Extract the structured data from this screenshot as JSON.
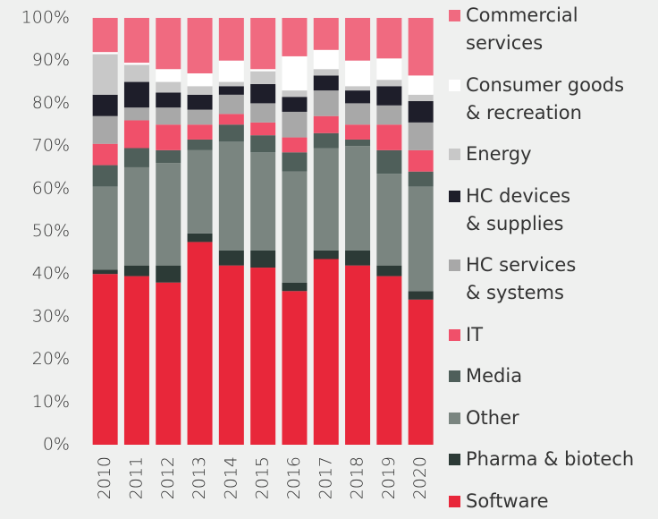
{
  "chart_data": {
    "type": "stacked_bar",
    "categories": [
      "2010",
      "2011",
      "2012",
      "2013",
      "2014",
      "2015",
      "2016",
      "2017",
      "2018",
      "2019",
      "2020"
    ],
    "series": [
      {
        "name": "Software",
        "color": "#e8273a",
        "values": [
          40,
          39.5,
          38,
          47.5,
          42,
          41.5,
          36,
          43.5,
          42,
          39.5,
          34
        ]
      },
      {
        "name": "Pharma & biotech",
        "color": "#2c3a36",
        "values": [
          1,
          2.5,
          4,
          2,
          3.5,
          4,
          2,
          2,
          3.5,
          2.5,
          2
        ]
      },
      {
        "name": "Other",
        "color": "#7a8580",
        "values": [
          19.5,
          23,
          24,
          19.5,
          25.5,
          23,
          26,
          24,
          24.5,
          21.5,
          24.5
        ]
      },
      {
        "name": "Media",
        "color": "#4f5f5a",
        "values": [
          5,
          4.5,
          3,
          2.5,
          4,
          4,
          4.5,
          3.5,
          1.5,
          5.5,
          3.5
        ]
      },
      {
        "name": "IT",
        "color": "#f0506a",
        "values": [
          5,
          6.5,
          6,
          3.5,
          2.5,
          3,
          3.5,
          4,
          3.5,
          6,
          5
        ]
      },
      {
        "name": "HC services\n& systems",
        "color": "#a8a8a8",
        "values": [
          6.5,
          3,
          4,
          3.5,
          4.5,
          4.5,
          6,
          6,
          5,
          4.5,
          6.5
        ]
      },
      {
        "name": "HC devices\n& supplies",
        "color": "#1e1e2a",
        "values": [
          5,
          6,
          3.5,
          3.5,
          2,
          4.5,
          3.5,
          3.5,
          3,
          4.5,
          5
        ]
      },
      {
        "name": "Energy",
        "color": "#c8c8c8",
        "values": [
          9.5,
          4,
          2.5,
          2,
          1,
          3,
          1.5,
          1.5,
          1,
          1.5,
          1.5
        ]
      },
      {
        "name": "Consumer goods\n& recreation",
        "color": "#ffffff",
        "values": [
          0.5,
          0.5,
          3,
          3,
          5,
          0.5,
          8,
          4.5,
          6,
          5,
          4.5
        ]
      },
      {
        "name": "Commercial\nservices",
        "color": "#f06a80",
        "values": [
          8,
          10.5,
          12,
          13,
          10,
          12,
          9,
          7.5,
          10,
          9.5,
          13.5
        ]
      }
    ],
    "ylim": [
      0,
      100
    ],
    "yticks": [
      {
        "value": 0,
        "label": "0%"
      },
      {
        "value": 10,
        "label": "10%"
      },
      {
        "value": 20,
        "label": "20%"
      },
      {
        "value": 30,
        "label": "30%"
      },
      {
        "value": 40,
        "label": "40%"
      },
      {
        "value": 50,
        "label": "50%"
      },
      {
        "value": 60,
        "label": "60%"
      },
      {
        "value": 70,
        "label": "70%"
      },
      {
        "value": 80,
        "label": "80%"
      },
      {
        "value": 90,
        "label": "90%"
      },
      {
        "value": 100,
        "label": "100%"
      }
    ],
    "legend": "right"
  }
}
